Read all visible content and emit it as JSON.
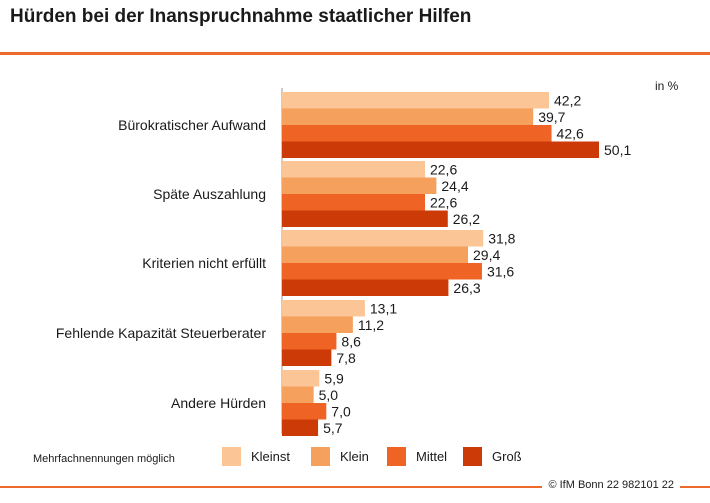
{
  "title": "Hürden bei der Inanspruchnahme staatlicher Hilfen",
  "unit_label": "in %",
  "note": "Mehrfachnennungen möglich",
  "copyright": "© IfM Bonn 22 982101 22",
  "colors": {
    "accent_rule": "#ee6a2c",
    "Kleinst": "#fbc596",
    "Klein": "#f5a05c",
    "Mittel": "#ef6424",
    "Groß": "#cc3a08"
  },
  "chart_data": {
    "type": "bar",
    "orientation": "horizontal",
    "title": "Hürden bei der Inanspruchnahme staatlicher Hilfen",
    "xlabel": "in %",
    "ylabel": "",
    "xlim": [
      0,
      60
    ],
    "grid": false,
    "legend_position": "bottom",
    "categories": [
      "Bürokratischer Aufwand",
      "Späte Auszahlung",
      "Kriterien nicht erfüllt",
      "Fehlende Kapazität Steuerberater",
      "Andere Hürden"
    ],
    "series": [
      {
        "name": "Kleinst",
        "values": [
          42.2,
          22.6,
          31.8,
          13.1,
          5.9
        ],
        "labels": [
          "42,2",
          "22,6",
          "31,8",
          "13,1",
          "5,9"
        ]
      },
      {
        "name": "Klein",
        "values": [
          39.7,
          24.4,
          29.4,
          11.2,
          5.0
        ],
        "labels": [
          "39,7",
          "24,4",
          "29,4",
          "11,2",
          "5,0"
        ]
      },
      {
        "name": "Mittel",
        "values": [
          42.6,
          22.6,
          31.6,
          8.6,
          7.0
        ],
        "labels": [
          "42,6",
          "22,6",
          "31,6",
          "8,6",
          "7,0"
        ]
      },
      {
        "name": "Groß",
        "values": [
          50.1,
          26.2,
          26.3,
          7.8,
          5.7
        ],
        "labels": [
          "50,1",
          "26,2",
          "26,3",
          "7,8",
          "5,7"
        ]
      }
    ]
  }
}
